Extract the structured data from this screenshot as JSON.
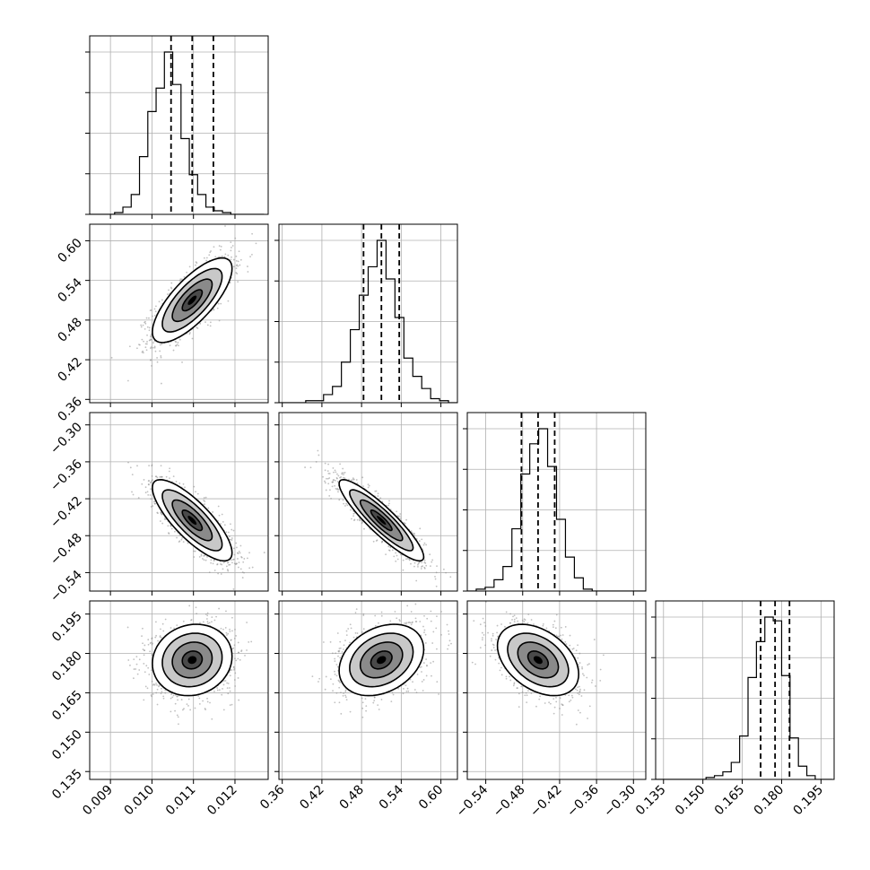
{
  "chart_data": {
    "type": "corner",
    "parameters": [
      {
        "range": [
          0.0085,
          0.0128
        ],
        "ticks": [
          0.009,
          0.01,
          0.011,
          0.012
        ],
        "tick_labels": [
          "0.009",
          "0.010",
          "0.011",
          "0.012"
        ],
        "quantiles": [
          0.01046,
          0.01097,
          0.01148
        ],
        "histogram": {
          "edges_start": 0.0085,
          "bin_width": 0.0002,
          "counts": [
            0,
            0,
            0,
            1,
            4,
            11,
            32,
            57,
            70,
            90,
            72,
            42,
            22,
            11,
            4,
            2,
            1,
            0,
            0,
            0,
            0
          ]
        }
      },
      {
        "range": [
          0.355,
          0.625
        ],
        "ticks": [
          0.36,
          0.42,
          0.48,
          0.54,
          0.6
        ],
        "tick_labels": [
          "0.36",
          "0.42",
          "0.48",
          "0.54",
          "0.60"
        ],
        "quantiles": [
          0.483,
          0.51,
          0.537
        ],
        "histogram": {
          "edges_start": 0.355,
          "bin_width": 0.0135,
          "counts": [
            0,
            0,
            0,
            1,
            1,
            4,
            8,
            20,
            36,
            53,
            67,
            80,
            61,
            42,
            22,
            13,
            7,
            2,
            1,
            0
          ]
        }
      },
      {
        "range": [
          -0.57,
          -0.28
        ],
        "ticks": [
          -0.54,
          -0.48,
          -0.42,
          -0.36,
          -0.3
        ],
        "tick_labels": [
          "−0.54",
          "−0.48",
          "−0.42",
          "−0.36",
          "−0.30"
        ],
        "quantiles": [
          -0.482,
          -0.455,
          -0.428
        ],
        "histogram": {
          "edges_start": -0.57,
          "bin_width": 0.0145,
          "counts": [
            0,
            1,
            2,
            6,
            13,
            33,
            62,
            78,
            86,
            66,
            38,
            18,
            7,
            1,
            0,
            0,
            0,
            0,
            0,
            0
          ]
        }
      },
      {
        "range": [
          0.132,
          0.2
        ],
        "ticks": [
          0.135,
          0.15,
          0.165,
          0.18,
          0.195
        ],
        "tick_labels": [
          "0.135",
          "0.150",
          "0.165",
          "0.180",
          "0.195"
        ],
        "quantiles": [
          0.172,
          0.1775,
          0.183
        ],
        "histogram": {
          "edges_start": 0.132,
          "bin_width": 0.0032,
          "counts": [
            0,
            0,
            0,
            0,
            0,
            0,
            1,
            2,
            4,
            9,
            23,
            54,
            73,
            86,
            84,
            55,
            22,
            7,
            2,
            0,
            0
          ]
        }
      }
    ],
    "pairs": [
      {
        "x": 0,
        "y": 1,
        "mean": [
          0.01097,
          0.51
        ],
        "sd": [
          0.00048,
          0.032
        ],
        "rho": 0.75
      },
      {
        "x": 0,
        "y": 2,
        "mean": [
          0.01097,
          -0.455
        ],
        "sd": [
          0.00048,
          0.033
        ],
        "rho": -0.8
      },
      {
        "x": 1,
        "y": 2,
        "mean": [
          0.51,
          -0.455
        ],
        "sd": [
          0.032,
          0.033
        ],
        "rho": -0.9
      },
      {
        "x": 0,
        "y": 3,
        "mean": [
          0.01097,
          0.1775
        ],
        "sd": [
          0.00048,
          0.0068
        ],
        "rho": 0.1
      },
      {
        "x": 1,
        "y": 3,
        "mean": [
          0.51,
          0.1775
        ],
        "sd": [
          0.032,
          0.0068
        ],
        "rho": 0.3
      },
      {
        "x": 2,
        "y": 3,
        "mean": [
          -0.455,
          0.1775
        ],
        "sd": [
          0.033,
          0.0068
        ],
        "rho": -0.4
      }
    ],
    "contour_levels_sigma": [
      0.5,
      1.0,
      1.5,
      2.0
    ],
    "grid": true,
    "colors": {
      "line": "#000000",
      "points": "#8c8c8c",
      "grid": "#b0b0b0"
    }
  }
}
